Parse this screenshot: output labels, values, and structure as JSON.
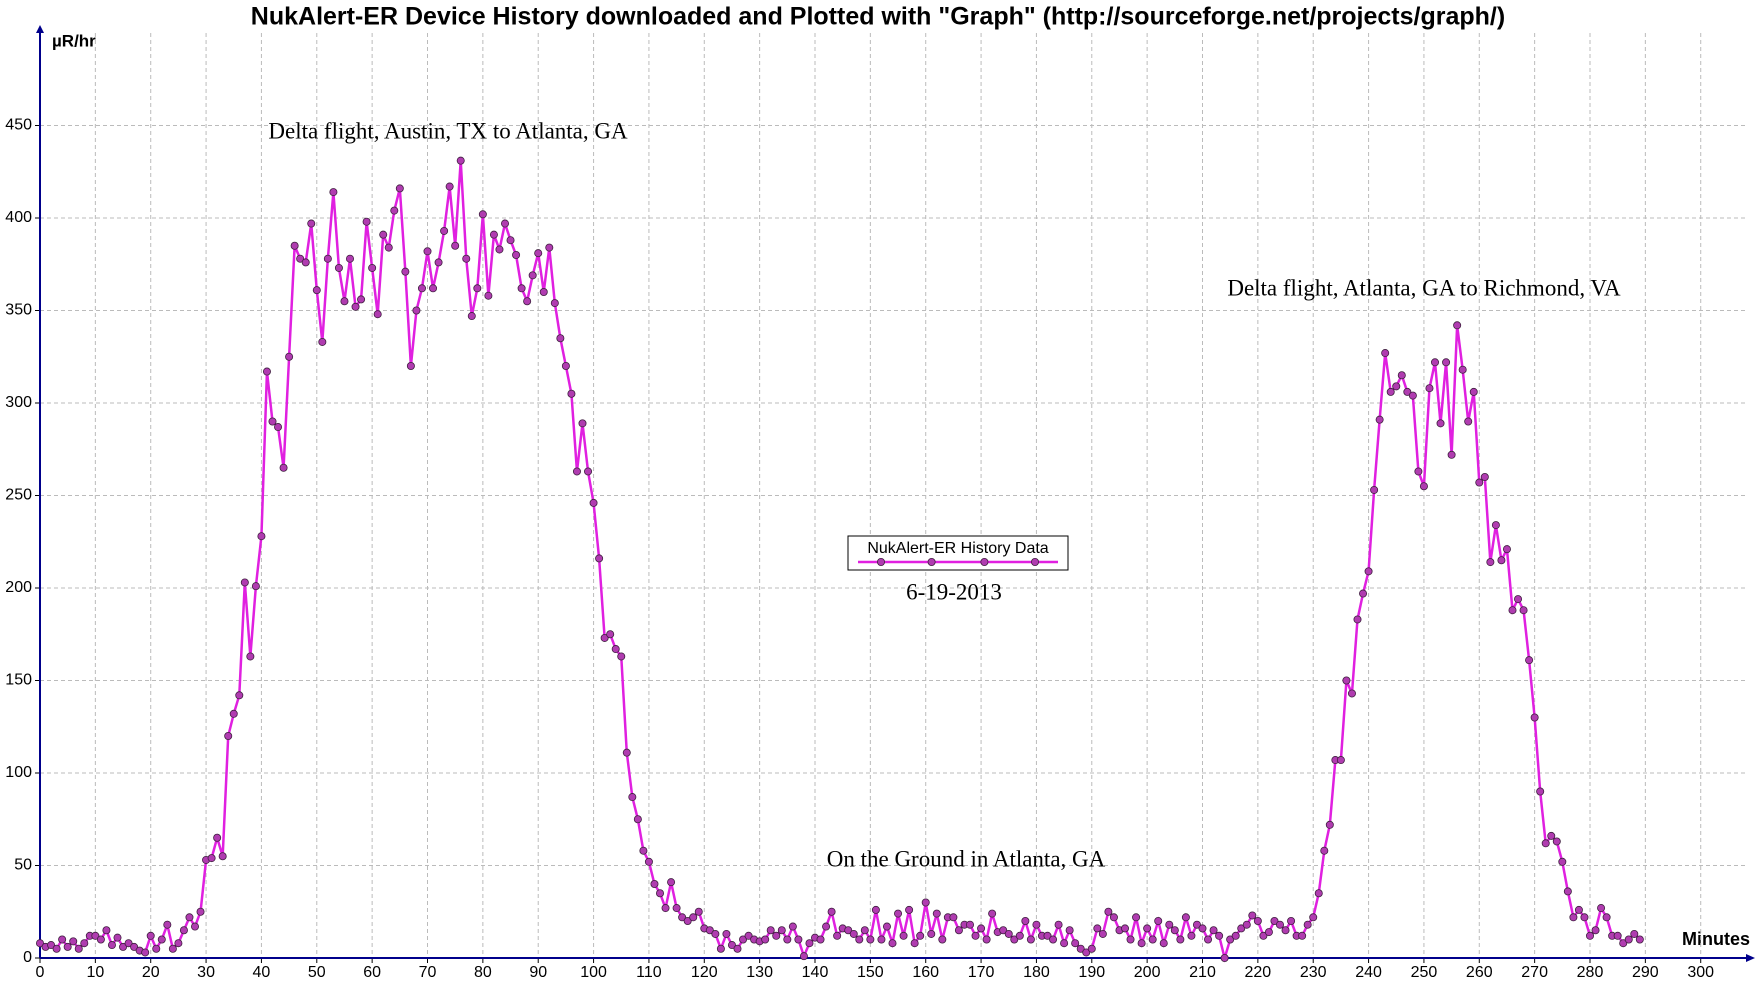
{
  "chart_data": {
    "type": "line",
    "title": "NukAlert-ER  Device History downloaded and Plotted with \"Graph\" (http://sourceforge.net/projects/graph/)",
    "y_label": "µR/hr",
    "x_label": "Minutes",
    "annotations": [
      "Delta flight, Austin, TX to Atlanta, GA",
      "Delta flight, Atlanta, GA to Richmond, VA",
      "On the Ground in Atlanta, GA",
      "6-19-2013"
    ],
    "legend": "center",
    "grid": true,
    "xlim": [
      0,
      308
    ],
    "ylim": [
      0,
      500
    ],
    "xticks": [
      0,
      10,
      20,
      30,
      40,
      50,
      60,
      70,
      80,
      90,
      100,
      110,
      120,
      130,
      140,
      150,
      160,
      170,
      180,
      190,
      200,
      210,
      220,
      230,
      240,
      250,
      260,
      270,
      280,
      290,
      300
    ],
    "yticks": [
      0,
      50,
      100,
      150,
      200,
      250,
      300,
      350,
      400,
      450
    ],
    "x": [
      0,
      1,
      2,
      3,
      4,
      5,
      6,
      7,
      8,
      9,
      10,
      11,
      12,
      13,
      14,
      15,
      16,
      17,
      18,
      19,
      20,
      21,
      22,
      23,
      24,
      25,
      26,
      27,
      28,
      29,
      30,
      31,
      32,
      33,
      34,
      35,
      36,
      37,
      38,
      39,
      40,
      41,
      42,
      43,
      44,
      45,
      46,
      47,
      48,
      49,
      50,
      51,
      52,
      53,
      54,
      55,
      56,
      57,
      58,
      59,
      60,
      61,
      62,
      63,
      64,
      65,
      66,
      67,
      68,
      69,
      70,
      71,
      72,
      73,
      74,
      75,
      76,
      77,
      78,
      79,
      80,
      81,
      82,
      83,
      84,
      85,
      86,
      87,
      88,
      89,
      90,
      91,
      92,
      93,
      94,
      95,
      96,
      97,
      98,
      99,
      100,
      101,
      102,
      103,
      104,
      105,
      106,
      107,
      108,
      109,
      110,
      111,
      112,
      113,
      114,
      115,
      116,
      117,
      118,
      119,
      120,
      121,
      122,
      123,
      124,
      125,
      126,
      127,
      128,
      129,
      130,
      131,
      132,
      133,
      134,
      135,
      136,
      137,
      138,
      139,
      140,
      141,
      142,
      143,
      144,
      145,
      146,
      147,
      148,
      149,
      150,
      151,
      152,
      153,
      154,
      155,
      156,
      157,
      158,
      159,
      160,
      161,
      162,
      163,
      164,
      165,
      166,
      167,
      168,
      169,
      170,
      171,
      172,
      173,
      174,
      175,
      176,
      177,
      178,
      179,
      180,
      181,
      182,
      183,
      184,
      185,
      186,
      187,
      188,
      189,
      190,
      191,
      192,
      193,
      194,
      195,
      196,
      197,
      198,
      199,
      200,
      201,
      202,
      203,
      204,
      205,
      206,
      207,
      208,
      209,
      210,
      211,
      212,
      213,
      214,
      215,
      216,
      217,
      218,
      219,
      220,
      221,
      222,
      223,
      224,
      225,
      226,
      227,
      228,
      229,
      230,
      231,
      232,
      233,
      234,
      235,
      236,
      237,
      238,
      239,
      240,
      241,
      242,
      243,
      244,
      245,
      246,
      247,
      248,
      249,
      250,
      251,
      252,
      253,
      254,
      255,
      256,
      257,
      258,
      259,
      260,
      261,
      262,
      263,
      264,
      265,
      266,
      267,
      268,
      269,
      270,
      271,
      272,
      273,
      274,
      275,
      276,
      277,
      278,
      279,
      280,
      281,
      282,
      283,
      284,
      285,
      286,
      287,
      288,
      289
    ],
    "series": [
      {
        "name": "NukAlert-ER History Data",
        "color": "#e020e0",
        "marker_color": "#b03cb0",
        "values": [
          8,
          6,
          7,
          5,
          10,
          6,
          9,
          5,
          8,
          12,
          12,
          10,
          15,
          7,
          11,
          6,
          8,
          6,
          4,
          3,
          12,
          5,
          10,
          18,
          5,
          8,
          15,
          22,
          17,
          25,
          53,
          54,
          65,
          55,
          120,
          132,
          142,
          203,
          163,
          201,
          228,
          317,
          290,
          287,
          265,
          325,
          385,
          378,
          376,
          397,
          361,
          333,
          378,
          414,
          373,
          355,
          378,
          352,
          356,
          398,
          373,
          348,
          391,
          384,
          404,
          416,
          371,
          320,
          350,
          362,
          382,
          362,
          376,
          393,
          417,
          385,
          431,
          378,
          347,
          362,
          402,
          358,
          391,
          383,
          397,
          388,
          380,
          362,
          355,
          369,
          381,
          360,
          384,
          354,
          335,
          320,
          305,
          263,
          289,
          263,
          246,
          216,
          173,
          175,
          167,
          163,
          111,
          87,
          75,
          58,
          52,
          40,
          35,
          27,
          41,
          27,
          22,
          20,
          22,
          25,
          16,
          15,
          13,
          5,
          13,
          7,
          5,
          10,
          12,
          10,
          9,
          10,
          15,
          12,
          15,
          10,
          17,
          10,
          1,
          8,
          11,
          10,
          17,
          25,
          12,
          16,
          15,
          13,
          10,
          15,
          10,
          26,
          10,
          17,
          8,
          24,
          12,
          26,
          8,
          12,
          30,
          13,
          24,
          10,
          22,
          22,
          15,
          18,
          18,
          12,
          16,
          10,
          24,
          14,
          15,
          13,
          10,
          12,
          20,
          10,
          18,
          12,
          12,
          10,
          18,
          8,
          15,
          8,
          5,
          3,
          5,
          16,
          13,
          25,
          22,
          15,
          16,
          10,
          22,
          8,
          16,
          10,
          20,
          8,
          18,
          15,
          10,
          22,
          12,
          18,
          16,
          10,
          15,
          12,
          0,
          10,
          12,
          16,
          18,
          23,
          20,
          12,
          14,
          20,
          18,
          15,
          20,
          12,
          12,
          18,
          22,
          35,
          58,
          72,
          107,
          107,
          150,
          143,
          183,
          197,
          209,
          253,
          291,
          327,
          306,
          309,
          315,
          306,
          304,
          263,
          255,
          308,
          322,
          289,
          322,
          272,
          342,
          318,
          290,
          306,
          257,
          260,
          214,
          234,
          215,
          221,
          188,
          194,
          188,
          161,
          130,
          90,
          62,
          66,
          63,
          52,
          36,
          22,
          26,
          22,
          12,
          15,
          27,
          22,
          12,
          12,
          8,
          10,
          13,
          10
        ]
      }
    ]
  }
}
